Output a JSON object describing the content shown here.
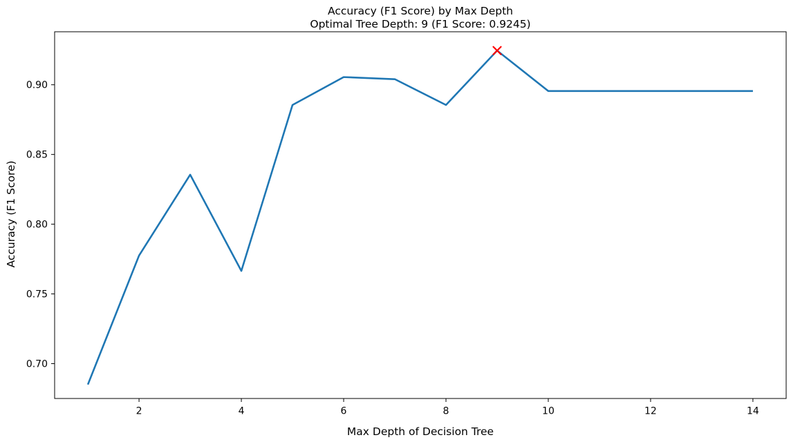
{
  "figure": {
    "title": "Accuracy (F1 Score) by Max Depth",
    "subtitle": "Optimal Tree Depth: 9 (F1 Score: 0.9245)",
    "xlabel": "Max Depth of Decision Tree",
    "ylabel": "Accuracy (F1 Score)"
  },
  "chart_data": {
    "type": "line",
    "title": "Accuracy (F1 Score) by Max Depth",
    "subtitle": "Optimal Tree Depth: 9 (F1 Score: 0.9245)",
    "xlabel": "Max Depth of Decision Tree",
    "ylabel": "Accuracy (F1 Score)",
    "x": [
      1,
      2,
      3,
      4,
      5,
      6,
      7,
      8,
      9,
      10,
      11,
      12,
      13,
      14
    ],
    "y": [
      0.685,
      0.7775,
      0.8355,
      0.7665,
      0.8855,
      0.9055,
      0.904,
      0.8855,
      0.9245,
      0.8955,
      0.8955,
      0.8955,
      0.8955,
      0.8955
    ],
    "x_tick_values": [
      2,
      4,
      6,
      8,
      10,
      12,
      14
    ],
    "x_tick_labels": [
      "2",
      "4",
      "6",
      "8",
      "10",
      "12",
      "14"
    ],
    "y_tick_values": [
      0.7,
      0.75,
      0.8,
      0.85,
      0.9
    ],
    "y_tick_labels": [
      "0.70",
      "0.75",
      "0.80",
      "0.85",
      "0.90"
    ],
    "xlim": [
      0.35,
      14.65
    ],
    "ylim": [
      0.675,
      0.938
    ],
    "grid": false,
    "legend": null,
    "line_color": "#1f77b4",
    "line_width": 2.6,
    "spine_color": "#000000",
    "optimal_point": {
      "x": 9,
      "y": 0.9245,
      "marker": "x",
      "color": "#ff0000"
    }
  }
}
